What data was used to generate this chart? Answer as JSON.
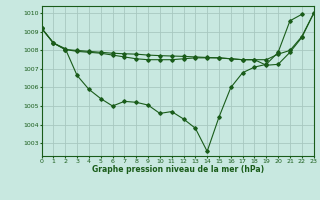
{
  "title": "Graphe pression niveau de la mer (hPa)",
  "bg_color": "#c8e8e0",
  "grid_color": "#a8c8c0",
  "line_color": "#1a5c1a",
  "xlim": [
    0,
    23
  ],
  "ylim": [
    1002.3,
    1010.4
  ],
  "yticks": [
    1003,
    1004,
    1005,
    1006,
    1007,
    1008,
    1009,
    1010
  ],
  "xtick_labels": [
    "0",
    "1",
    "2",
    "3",
    "4",
    "5",
    "6",
    "7",
    "8",
    "9",
    "10",
    "11",
    "12",
    "13",
    "14",
    "15",
    "16",
    "17",
    "18",
    "19",
    "20",
    "21",
    "22",
    "23"
  ],
  "series": [
    {
      "x": [
        0,
        1,
        2,
        3,
        4,
        5,
        6,
        7,
        8,
        9,
        10,
        11,
        12,
        13,
        14,
        15,
        16,
        17,
        18,
        19,
        20,
        21,
        22
      ],
      "y": [
        1009.2,
        1008.4,
        1008.1,
        1006.65,
        1005.9,
        1005.4,
        1005.0,
        1005.25,
        1005.2,
        1005.05,
        1004.6,
        1004.7,
        1004.3,
        1003.8,
        1002.55,
        1004.4,
        1006.0,
        1006.8,
        1007.1,
        1007.25,
        1007.9,
        1009.6,
        1009.95
      ]
    },
    {
      "x": [
        0,
        1,
        2,
        3,
        4,
        5,
        6,
        7,
        8,
        9,
        10,
        11,
        12,
        13,
        14,
        15,
        16,
        17,
        18,
        19,
        20,
        21,
        22,
        23
      ],
      "y": [
        1009.2,
        1008.4,
        1008.05,
        1007.95,
        1007.9,
        1007.85,
        1007.75,
        1007.65,
        1007.55,
        1007.5,
        1007.5,
        1007.5,
        1007.55,
        1007.6,
        1007.6,
        1007.6,
        1007.55,
        1007.5,
        1007.5,
        1007.2,
        1007.25,
        1007.9,
        1008.7,
        1010.0
      ]
    },
    {
      "x": [
        0,
        1,
        2,
        3,
        4,
        5,
        6,
        7,
        8,
        9,
        10,
        11,
        12,
        13,
        14,
        15,
        16,
        17,
        18,
        19,
        20,
        21,
        22,
        23
      ],
      "y": [
        1009.2,
        1008.4,
        1008.05,
        1008.0,
        1007.95,
        1007.9,
        1007.85,
        1007.82,
        1007.8,
        1007.75,
        1007.72,
        1007.7,
        1007.68,
        1007.65,
        1007.62,
        1007.6,
        1007.55,
        1007.5,
        1007.5,
        1007.5,
        1007.8,
        1008.0,
        1008.75,
        1010.0
      ]
    }
  ]
}
